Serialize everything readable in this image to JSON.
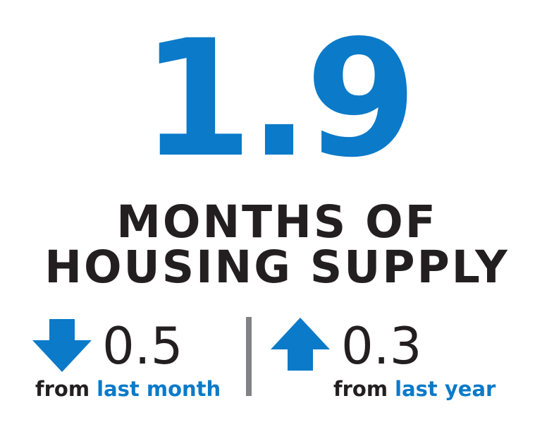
{
  "headline_value": "1.9",
  "headline_label": {
    "line1": "MONTHS OF",
    "line2": "HOUSING SUPPLY"
  },
  "left_stat": {
    "direction": "down",
    "icon": "arrow-down-icon",
    "value": "0.5",
    "caption_prefix": "from ",
    "caption_highlight": "last month"
  },
  "right_stat": {
    "direction": "up",
    "icon": "arrow-up-icon",
    "value": "0.3",
    "caption_prefix": "from ",
    "caption_highlight": "last year"
  },
  "colors": {
    "accent_blue": "#0a7ac9",
    "text_dark": "#231f20",
    "divider_gray": "#808285"
  }
}
